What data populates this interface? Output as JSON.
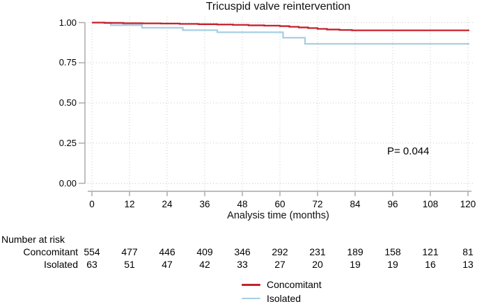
{
  "title": "Tricuspid valve reintervention",
  "annotation": {
    "p_value": "P= 0.044"
  },
  "colors": {
    "concomitant": "#c5202a",
    "isolated": "#a8cee4",
    "grid": "#cbcbcb",
    "axis": "#a6a6a6",
    "text": "#000000"
  },
  "chart_data": {
    "type": "line",
    "subtype": "kaplan-meier-step",
    "title": "Tricuspid valve reintervention",
    "xlabel": "Analysis time (months)",
    "ylabel": "",
    "xlim": [
      0,
      120
    ],
    "ylim": [
      0.0,
      1.0
    ],
    "grid": "dotted",
    "legend_position": "bottom-center",
    "x_tick_values": [
      0,
      12,
      24,
      36,
      48,
      60,
      72,
      84,
      96,
      108,
      120
    ],
    "x_tick_labels": [
      "0",
      "12",
      "24",
      "36",
      "48",
      "60",
      "72",
      "84",
      "96",
      "108",
      "120"
    ],
    "y_tick_values": [
      1.0,
      0.75,
      0.5,
      0.25,
      0.0
    ],
    "y_tick_labels": [
      "1.00",
      "0.75",
      "0.50",
      "0.25",
      "0.00"
    ],
    "annotation": "P= 0.044",
    "series": [
      {
        "name": "Concomitant",
        "color": "#c5202a",
        "points": [
          [
            0,
            1.0
          ],
          [
            4,
            0.998
          ],
          [
            10,
            0.996
          ],
          [
            16,
            0.995
          ],
          [
            22,
            0.994
          ],
          [
            28,
            0.992
          ],
          [
            34,
            0.99
          ],
          [
            40,
            0.988
          ],
          [
            45,
            0.986
          ],
          [
            50,
            0.983
          ],
          [
            55,
            0.981
          ],
          [
            60,
            0.978
          ],
          [
            63,
            0.974
          ],
          [
            66,
            0.97
          ],
          [
            69,
            0.966
          ],
          [
            72,
            0.961
          ],
          [
            75,
            0.957
          ],
          [
            79,
            0.954
          ],
          [
            83,
            0.952
          ],
          [
            120,
            0.952
          ]
        ]
      },
      {
        "name": "Isolated",
        "color": "#a8cee4",
        "points": [
          [
            0,
            1.0
          ],
          [
            6,
            0.984
          ],
          [
            16,
            0.968
          ],
          [
            29,
            0.953
          ],
          [
            40,
            0.94
          ],
          [
            61,
            0.906
          ],
          [
            68,
            0.868
          ],
          [
            120,
            0.868
          ]
        ]
      }
    ]
  },
  "risk_table": {
    "header": "Number at risk",
    "rows": [
      {
        "label": "Concomitant",
        "values": [
          "554",
          "477",
          "446",
          "409",
          "346",
          "292",
          "231",
          "189",
          "158",
          "121",
          "81"
        ]
      },
      {
        "label": "Isolated",
        "values": [
          "63",
          "51",
          "47",
          "42",
          "33",
          "27",
          "20",
          "19",
          "19",
          "16",
          "13"
        ]
      }
    ]
  },
  "legend": {
    "items": [
      {
        "label": "Concomitant",
        "color": "#c5202a"
      },
      {
        "label": "Isolated",
        "color": "#a8cee4"
      }
    ]
  }
}
